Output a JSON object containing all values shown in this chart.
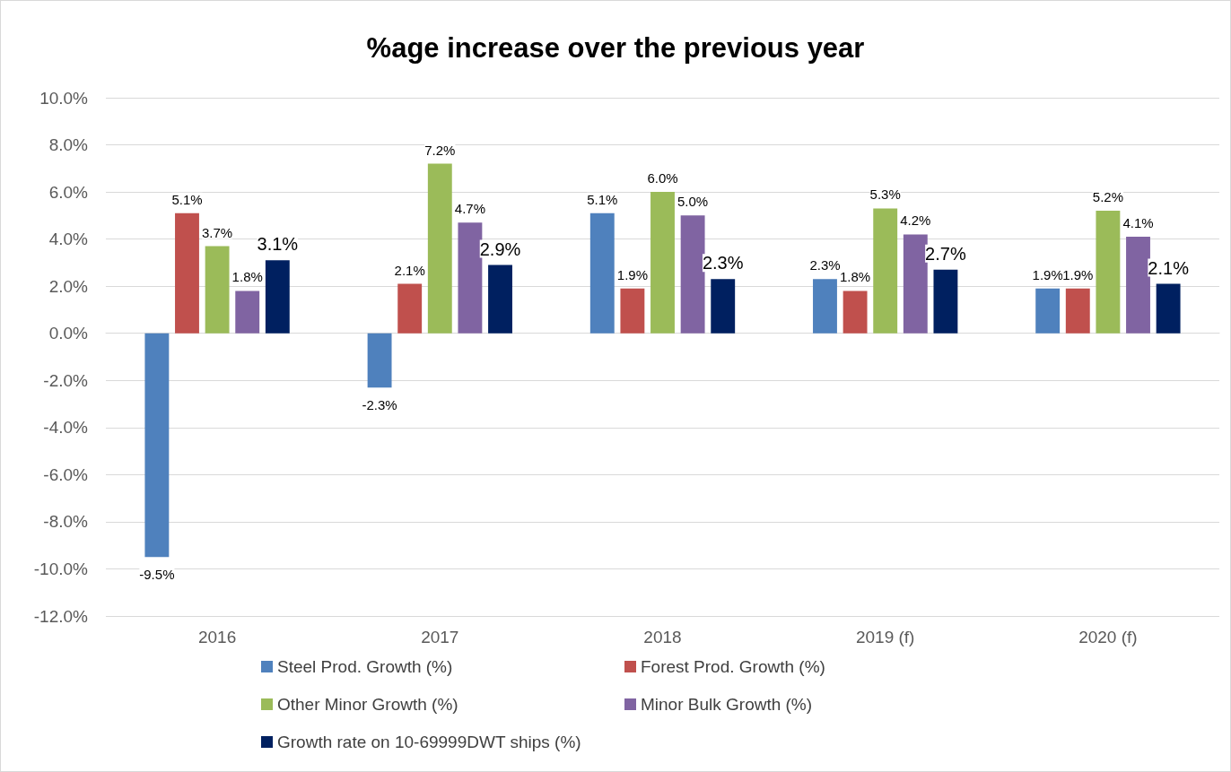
{
  "chart_data": {
    "type": "bar",
    "title": "%age increase over the previous year",
    "categories": [
      "2016",
      "2017",
      "2018",
      "2019 (f)",
      "2020 (f)"
    ],
    "series": [
      {
        "name": "Steel Prod. Growth (%)",
        "color": "#4f81bd",
        "values": [
          -9.5,
          -2.3,
          5.1,
          2.3,
          1.9
        ],
        "value_labels": [
          "-9.5%",
          "-2.3%",
          "5.1%",
          "2.3%",
          "1.9%"
        ]
      },
      {
        "name": "Forest Prod. Growth (%)",
        "color": "#c0504d",
        "values": [
          5.1,
          2.1,
          1.9,
          1.8,
          1.9
        ],
        "value_labels": [
          "5.1%",
          "2.1%",
          "1.9%",
          "1.8%",
          "1.9%"
        ]
      },
      {
        "name": "Other Minor Growth (%)",
        "color": "#9bbb59",
        "values": [
          3.7,
          7.2,
          6.0,
          5.3,
          5.2
        ],
        "value_labels": [
          "3.7%",
          "7.2%",
          "6.0%",
          "5.3%",
          "5.2%"
        ]
      },
      {
        "name": "Minor Bulk Growth (%)",
        "color": "#8064a2",
        "values": [
          1.8,
          4.7,
          5.0,
          4.2,
          4.1
        ],
        "value_labels": [
          "1.8%",
          "4.7%",
          "5.0%",
          "4.2%",
          "4.1%"
        ]
      },
      {
        "name": "Growth rate on 10-69999DWT ships (%)",
        "color": "#002060",
        "values": [
          3.1,
          2.9,
          2.3,
          2.7,
          2.1
        ],
        "value_labels": [
          "3.1%",
          "2.9%",
          "2.3%",
          "2.7%",
          "2.1%"
        ]
      }
    ],
    "ylim": [
      -12,
      10
    ],
    "yticks": [
      {
        "value": -12,
        "label": "-12.0%"
      },
      {
        "value": -10,
        "label": "-10.0%"
      },
      {
        "value": -8,
        "label": "-8.0%"
      },
      {
        "value": -6,
        "label": "-6.0%"
      },
      {
        "value": -4,
        "label": "-4.0%"
      },
      {
        "value": -2,
        "label": "-2.0%"
      },
      {
        "value": 0,
        "label": "0.0%"
      },
      {
        "value": 2,
        "label": "2.0%"
      },
      {
        "value": 4,
        "label": "4.0%"
      },
      {
        "value": 6,
        "label": "6.0%"
      },
      {
        "value": 8,
        "label": "8.0%"
      },
      {
        "value": 10,
        "label": "10.0%"
      }
    ],
    "grid": "y",
    "legend": "bottom"
  }
}
